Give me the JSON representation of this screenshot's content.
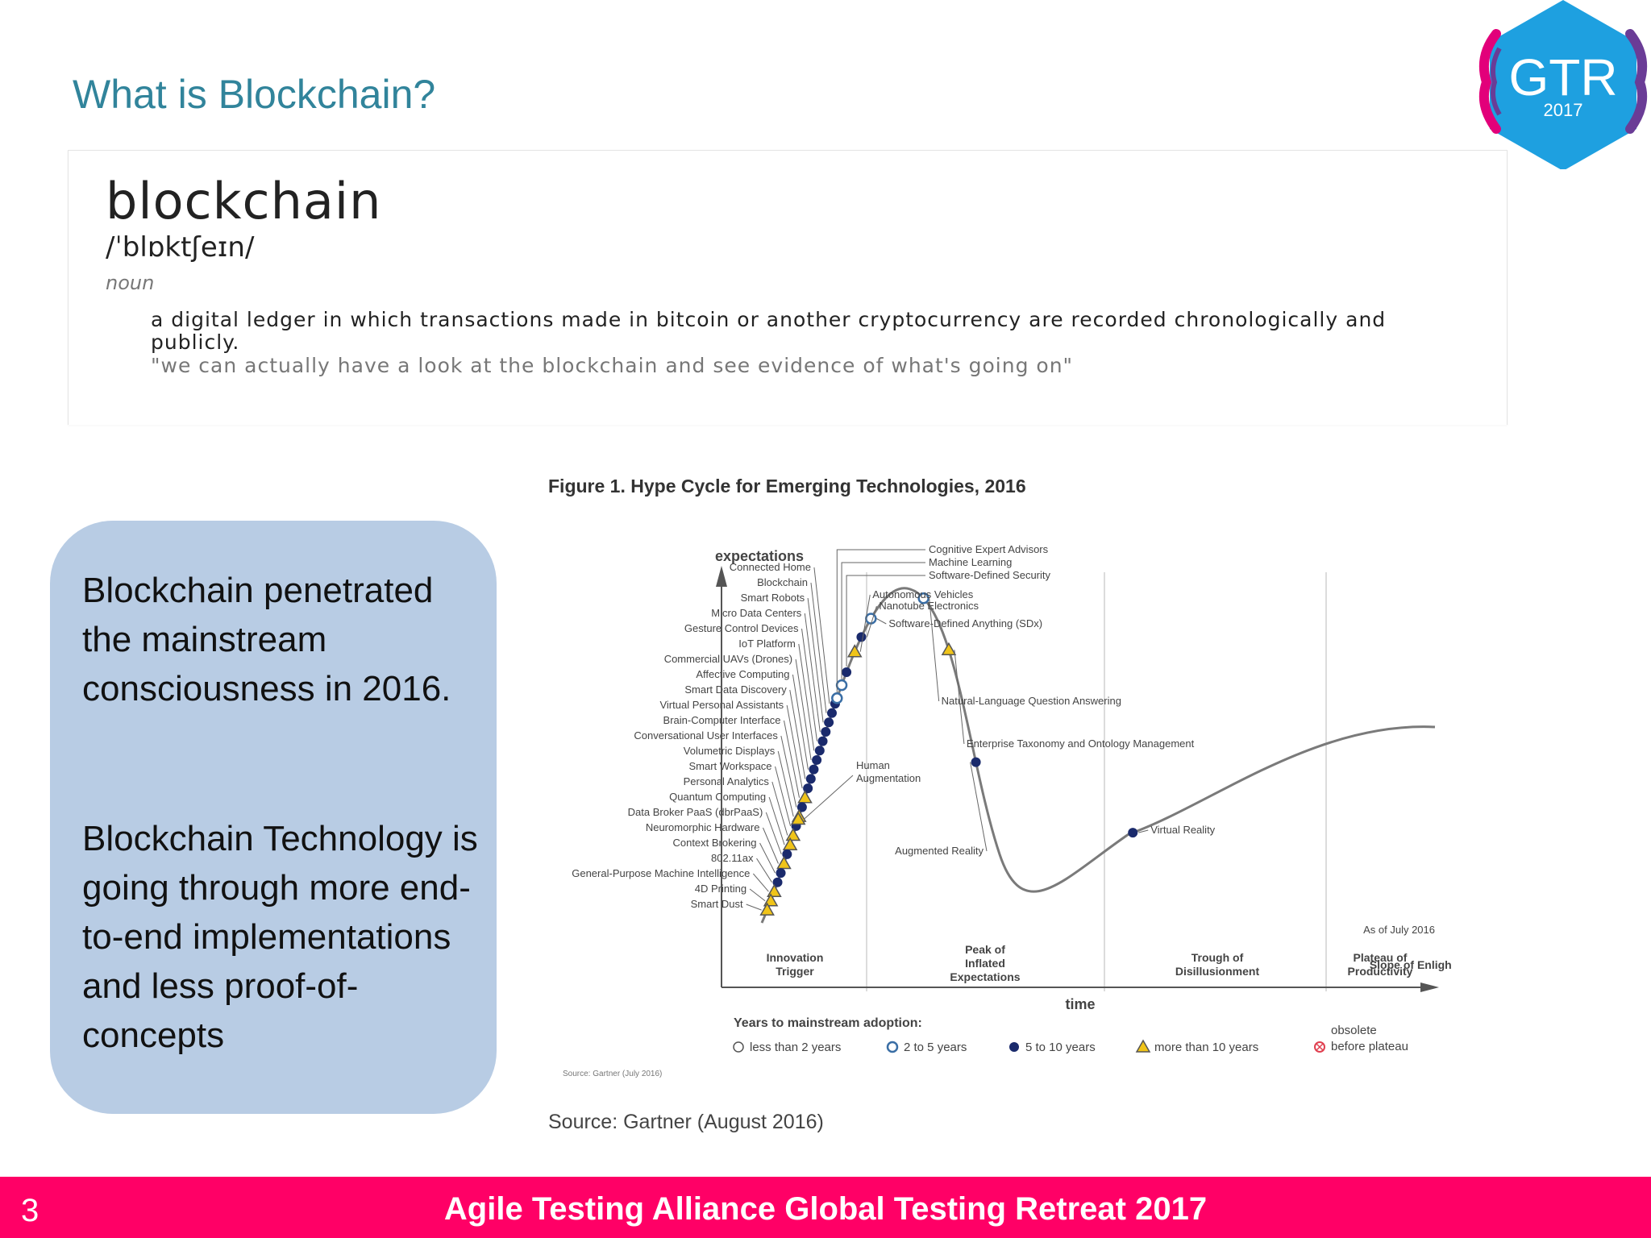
{
  "slide": {
    "title": "What is Blockchain?",
    "page_number": "3",
    "footer": "Agile Testing Alliance  Global Testing Retreat 2017"
  },
  "logo": {
    "text": "GTR",
    "year": "2017",
    "colors": [
      "#1ea0e0",
      "#e2007a",
      "#6a3c96",
      "#00a0c6"
    ]
  },
  "dictionary": {
    "word": "blockchain",
    "phonetic": "/ˈblɒktʃeɪn/",
    "part_of_speech": "noun",
    "definition": "a digital ledger in which transactions made in bitcoin or another cryptocurrency are recorded chronologically and publicly.",
    "example": "\"we can actually have a look at the blockchain and see evidence of what's going on\""
  },
  "callout": {
    "paragraph1": "Blockchain penetrated the mainstream consciousness in 2016.",
    "paragraph2": "Blockchain Technology is going through more end-to-end implementations and less proof-of-concepts"
  },
  "figure": {
    "title": "Figure 1. Hype Cycle for Emerging Technologies, 2016",
    "source_caption": "Source: Gartner (August 2016)",
    "inner_source": "Source: Gartner (July 2016)",
    "as_of": "As of July 2016",
    "y_axis_label": "expectations",
    "x_axis_label": "time",
    "phases": [
      {
        "name": "Innovation Trigger",
        "lines": [
          "Innovation",
          "Trigger"
        ]
      },
      {
        "name": "Peak of Inflated Expectations",
        "lines": [
          "Peak of",
          "Inflated",
          "Expectations"
        ]
      },
      {
        "name": "Trough of Disillusionment",
        "lines": [
          "Trough of",
          "Disillusionment"
        ]
      },
      {
        "name": "Slope of Enlightenment",
        "lines": [
          "Slope of Enlightenment"
        ]
      },
      {
        "name": "Plateau of Productivity",
        "lines": [
          "Plateau of",
          "Productivity"
        ]
      }
    ],
    "legend_title": "Years to mainstream adoption:",
    "legend": [
      {
        "label": "less than 2 years",
        "symbol": "hollow-circle"
      },
      {
        "label": "2 to 5 years",
        "symbol": "light-circle"
      },
      {
        "label": "5 to 10 years",
        "symbol": "dark-circle"
      },
      {
        "label": "more than 10 years",
        "symbol": "triangle"
      },
      {
        "label": "obsolete before plateau",
        "symbol": "crossed-circle",
        "lines": [
          "obsolete",
          "before plateau"
        ]
      }
    ],
    "technologies_left": [
      {
        "label": "Connected Home",
        "marker": "dark-circle"
      },
      {
        "label": "Blockchain",
        "marker": "dark-circle"
      },
      {
        "label": "Smart Robots",
        "marker": "dark-circle"
      },
      {
        "label": "Micro Data Centers",
        "marker": "dark-circle"
      },
      {
        "label": "Gesture Control Devices",
        "marker": "dark-circle"
      },
      {
        "label": "IoT Platform",
        "marker": "dark-circle"
      },
      {
        "label": "Commercial UAVs (Drones)",
        "marker": "dark-circle"
      },
      {
        "label": "Affective Computing",
        "marker": "dark-circle"
      },
      {
        "label": "Smart Data Discovery",
        "marker": "dark-circle"
      },
      {
        "label": "Virtual Personal Assistants",
        "marker": "dark-circle"
      },
      {
        "label": "Brain-Computer Interface",
        "marker": "triangle"
      },
      {
        "label": "Conversational User Interfaces",
        "marker": "dark-circle"
      },
      {
        "label": "Volumetric Displays",
        "marker": "triangle"
      },
      {
        "label": "Smart Workspace",
        "marker": "dark-circle"
      },
      {
        "label": "Personal Analytics",
        "marker": "triangle"
      },
      {
        "label": "Quantum Computing",
        "marker": "triangle"
      },
      {
        "label": "Data Broker PaaS (dbrPaaS)",
        "marker": "dark-circle"
      },
      {
        "label": "Neuromorphic Hardware",
        "marker": "triangle"
      },
      {
        "label": "Context Brokering",
        "marker": "dark-circle"
      },
      {
        "label": "802.11ax",
        "marker": "dark-circle"
      },
      {
        "label": "General-Purpose Machine Intelligence",
        "marker": "triangle"
      },
      {
        "label": "4D Printing",
        "marker": "triangle"
      },
      {
        "label": "Smart Dust",
        "marker": "triangle"
      }
    ],
    "technologies_peak": [
      {
        "label": "Cognitive Expert Advisors",
        "marker": "light-circle"
      },
      {
        "label": "Machine Learning",
        "marker": "light-circle"
      },
      {
        "label": "Software-Defined Security",
        "marker": "dark-circle"
      }
    ],
    "technologies_right": [
      {
        "label": "Autonomous Vehicles",
        "marker": "triangle"
      },
      {
        "label": "Nanotube Electronics",
        "marker": "dark-circle"
      },
      {
        "label": "Software-Defined Anything (SDx)",
        "marker": "light-circle"
      },
      {
        "label": "Natural-Language Question Answering",
        "marker": "light-circle"
      },
      {
        "label": "Enterprise Taxonomy and Ontology Management",
        "marker": "triangle"
      },
      {
        "label": "Virtual Reality",
        "marker": "dark-circle"
      }
    ],
    "human_augmentation": {
      "label": "Human Augmentation",
      "lines": [
        "Human",
        "Augmentation"
      ],
      "marker": "triangle"
    },
    "augmented_reality": {
      "label": "Augmented Reality",
      "marker": "dark-circle"
    },
    "marker_colors": {
      "dark": "#1a2a6c",
      "light": "#8fb4d8",
      "triangle_fill": "#f0c419",
      "triangle_stroke": "#555555"
    }
  }
}
